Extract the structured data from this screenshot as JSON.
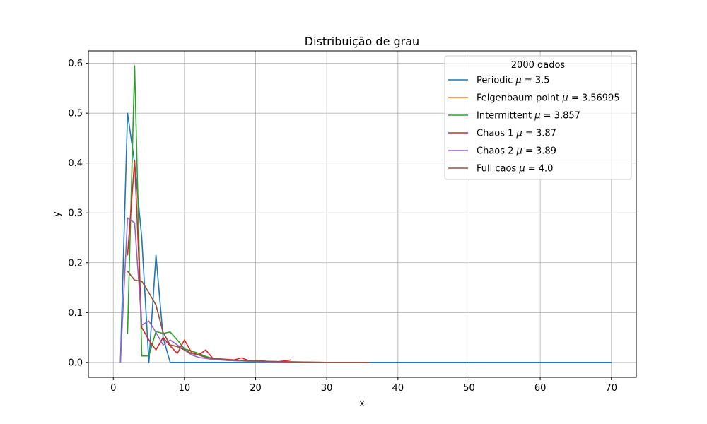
{
  "chart_data": {
    "type": "line",
    "title": "Distribuição de grau",
    "xlabel": "x",
    "ylabel": "y",
    "xlim": [
      -3.5,
      73.5
    ],
    "ylim": [
      -0.03,
      0.625
    ],
    "xticks": [
      0,
      10,
      20,
      30,
      40,
      50,
      60,
      70
    ],
    "yticks": [
      0.0,
      0.1,
      0.2,
      0.3,
      0.4,
      0.5,
      0.6
    ],
    "grid": true,
    "legend": {
      "title": "2000 dados",
      "placement": "top-right"
    },
    "series": [
      {
        "name": "Periodic",
        "mu": "3.5",
        "color": "#1f77b4",
        "points": [
          [
            1,
            0
          ],
          [
            2,
            0.5
          ],
          [
            3,
            0.4
          ],
          [
            4,
            0.25
          ],
          [
            5,
            0
          ],
          [
            6,
            0.215
          ],
          [
            7,
            0.05
          ],
          [
            8,
            0
          ],
          [
            10,
            0
          ],
          [
            20,
            0
          ],
          [
            30,
            0
          ],
          [
            40,
            0
          ],
          [
            50,
            0
          ],
          [
            60,
            0
          ],
          [
            70,
            0
          ]
        ]
      },
      {
        "name": "Feigenbaum point",
        "mu": "3.56995",
        "color": "#ff7f0e",
        "points": [
          [
            2,
            0.183
          ],
          [
            3,
            0.165
          ],
          [
            4,
            0.163
          ],
          [
            5,
            0.14
          ],
          [
            6,
            0.115
          ],
          [
            7,
            0.06
          ],
          [
            8,
            0.035
          ],
          [
            9,
            0.032
          ],
          [
            10,
            0.025
          ],
          [
            11,
            0.018
          ],
          [
            12,
            0.015
          ],
          [
            13,
            0.01
          ],
          [
            14,
            0.008
          ],
          [
            15,
            0.007
          ],
          [
            16,
            0.005
          ],
          [
            18,
            0.004
          ],
          [
            20,
            0.003
          ],
          [
            22,
            0.002
          ],
          [
            25,
            0.001
          ],
          [
            30,
            0
          ],
          [
            36,
            0
          ]
        ]
      },
      {
        "name": "Intermittent",
        "mu": "3.857",
        "color": "#2ca02c",
        "points": [
          [
            2,
            0.057
          ],
          [
            3,
            0.595
          ],
          [
            4,
            0.013
          ],
          [
            5,
            0.013
          ],
          [
            6,
            0.062
          ],
          [
            7,
            0.058
          ],
          [
            8,
            0.061
          ],
          [
            9,
            0.045
          ],
          [
            10,
            0.027
          ],
          [
            11,
            0.023
          ],
          [
            12,
            0.018
          ],
          [
            13,
            0.012
          ],
          [
            14,
            0.008
          ],
          [
            15,
            0.006
          ],
          [
            16,
            0.004
          ],
          [
            18,
            0.003
          ],
          [
            20,
            0.002
          ],
          [
            22,
            0.001
          ],
          [
            25,
            0
          ]
        ]
      },
      {
        "name": "Chaos 1",
        "mu": "3.87",
        "color": "#d62728",
        "points": [
          [
            2,
            0.215
          ],
          [
            3,
            0.405
          ],
          [
            4,
            0.07
          ],
          [
            5,
            0.045
          ],
          [
            6,
            0.025
          ],
          [
            7,
            0.05
          ],
          [
            8,
            0.033
          ],
          [
            9,
            0.018
          ],
          [
            10,
            0.045
          ],
          [
            11,
            0.02
          ],
          [
            12,
            0.015
          ],
          [
            13,
            0.025
          ],
          [
            14,
            0.008
          ],
          [
            15,
            0.007
          ],
          [
            16,
            0.006
          ],
          [
            17,
            0.005
          ],
          [
            18,
            0.009
          ],
          [
            19,
            0.004
          ],
          [
            20,
            0.003
          ],
          [
            21,
            0.003
          ],
          [
            22,
            0.001
          ],
          [
            23,
            0.001
          ],
          [
            24,
            0.003
          ],
          [
            25,
            0.005
          ]
        ]
      },
      {
        "name": "Chaos 2",
        "mu": "3.89",
        "color": "#9467bd",
        "points": [
          [
            1,
            0
          ],
          [
            2,
            0.29
          ],
          [
            3,
            0.28
          ],
          [
            4,
            0.075
          ],
          [
            5,
            0.083
          ],
          [
            6,
            0.06
          ],
          [
            7,
            0.035
          ],
          [
            8,
            0.045
          ],
          [
            9,
            0.035
          ],
          [
            10,
            0.025
          ],
          [
            11,
            0.015
          ],
          [
            12,
            0.01
          ],
          [
            13,
            0.008
          ],
          [
            14,
            0.006
          ],
          [
            15,
            0.005
          ],
          [
            16,
            0.004
          ],
          [
            18,
            0.003
          ],
          [
            20,
            0.002
          ],
          [
            22,
            0.001
          ],
          [
            25,
            0
          ]
        ]
      },
      {
        "name": "Full caos",
        "mu": "4.0",
        "color": "#8c564b",
        "points": [
          [
            2,
            0.183
          ],
          [
            3,
            0.165
          ],
          [
            4,
            0.163
          ],
          [
            5,
            0.14
          ],
          [
            6,
            0.115
          ],
          [
            7,
            0.06
          ],
          [
            8,
            0.035
          ],
          [
            9,
            0.032
          ],
          [
            10,
            0.025
          ],
          [
            11,
            0.018
          ],
          [
            12,
            0.015
          ],
          [
            13,
            0.01
          ],
          [
            14,
            0.008
          ],
          [
            15,
            0.007
          ],
          [
            16,
            0.005
          ],
          [
            18,
            0.004
          ],
          [
            20,
            0.003
          ],
          [
            22,
            0.002
          ],
          [
            25,
            0.001
          ],
          [
            30,
            0
          ],
          [
            36,
            0
          ]
        ]
      }
    ]
  }
}
